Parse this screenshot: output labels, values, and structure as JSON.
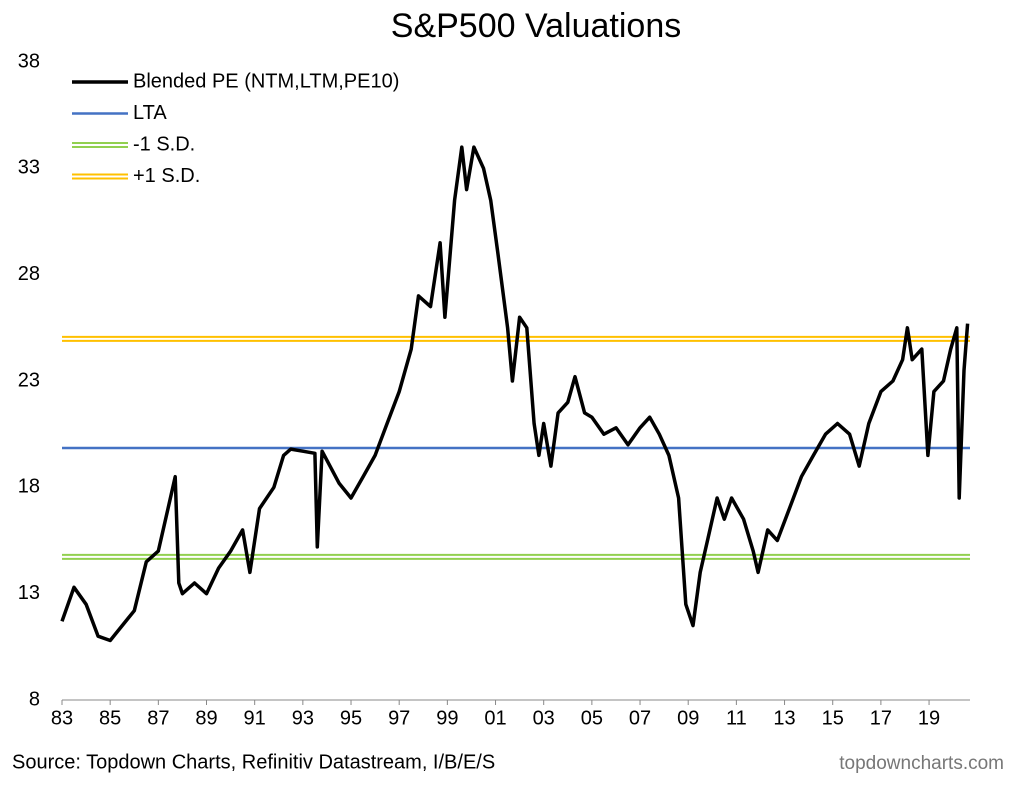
{
  "chart_data": {
    "type": "line",
    "title": "S&P500 Valuations",
    "xlim": [
      1983,
      2020.7
    ],
    "xticks": [
      {
        "value": 1983,
        "label": "83"
      },
      {
        "value": 1985,
        "label": "85"
      },
      {
        "value": 1987,
        "label": "87"
      },
      {
        "value": 1989,
        "label": "89"
      },
      {
        "value": 1991,
        "label": "91"
      },
      {
        "value": 1993,
        "label": "93"
      },
      {
        "value": 1995,
        "label": "95"
      },
      {
        "value": 1997,
        "label": "97"
      },
      {
        "value": 1999,
        "label": "99"
      },
      {
        "value": 2001,
        "label": "01"
      },
      {
        "value": 2003,
        "label": "03"
      },
      {
        "value": 2005,
        "label": "05"
      },
      {
        "value": 2007,
        "label": "07"
      },
      {
        "value": 2009,
        "label": "09"
      },
      {
        "value": 2011,
        "label": "11"
      },
      {
        "value": 2013,
        "label": "13"
      },
      {
        "value": 2015,
        "label": "15"
      },
      {
        "value": 2017,
        "label": "17"
      },
      {
        "value": 2019,
        "label": "19"
      }
    ],
    "ylim": [
      8,
      38
    ],
    "yticks": [
      8,
      13,
      18,
      23,
      28,
      33,
      38
    ],
    "grid": false,
    "x": [
      1983.0,
      1983.5,
      1984.0,
      1984.5,
      1985.0,
      1985.5,
      1986.0,
      1986.5,
      1987.0,
      1987.4,
      1987.7,
      1987.85,
      1988.0,
      1988.5,
      1989.0,
      1989.5,
      1990.0,
      1990.5,
      1990.8,
      1991.2,
      1991.8,
      1992.2,
      1992.5,
      1993.0,
      1993.5,
      1993.6,
      1993.8,
      1994.5,
      1995.0,
      1995.5,
      1996.0,
      1996.5,
      1997.0,
      1997.5,
      1997.8,
      1998.3,
      1998.7,
      1998.9,
      1999.3,
      1999.6,
      1999.8,
      2000.1,
      2000.5,
      2000.8,
      2001.1,
      2001.5,
      2001.7,
      2002.0,
      2002.3,
      2002.6,
      2002.8,
      2003.0,
      2003.3,
      2003.6,
      2004.0,
      2004.3,
      2004.7,
      2005.0,
      2005.5,
      2006.0,
      2006.5,
      2007.0,
      2007.4,
      2007.8,
      2008.2,
      2008.6,
      2008.9,
      2009.2,
      2009.5,
      2009.8,
      2010.2,
      2010.5,
      2010.8,
      2011.3,
      2011.7,
      2011.9,
      2012.3,
      2012.7,
      2013.2,
      2013.7,
      2014.2,
      2014.7,
      2015.2,
      2015.7,
      2016.1,
      2016.5,
      2017.0,
      2017.5,
      2017.9,
      2018.1,
      2018.3,
      2018.7,
      2018.95,
      2019.2,
      2019.6,
      2019.9,
      2020.15,
      2020.25,
      2020.45,
      2020.6
    ],
    "series": [
      {
        "name": "Blended PE (NTM,LTM,PE10)",
        "color": "#000000",
        "values": [
          11.7,
          13.3,
          12.5,
          11.0,
          10.8,
          11.5,
          12.2,
          14.5,
          15.0,
          17.0,
          18.5,
          13.5,
          13.0,
          13.5,
          13.0,
          14.2,
          15.0,
          16.0,
          14.0,
          17.0,
          18.0,
          19.5,
          19.8,
          19.7,
          19.6,
          15.2,
          19.7,
          18.2,
          17.5,
          18.5,
          19.5,
          21.0,
          22.5,
          24.5,
          27.0,
          26.5,
          29.5,
          26.0,
          31.5,
          34.0,
          32.0,
          34.0,
          33.0,
          31.5,
          29.0,
          25.5,
          23.0,
          26.0,
          25.5,
          21.0,
          19.5,
          21.0,
          19.0,
          21.5,
          22.0,
          23.2,
          21.5,
          21.3,
          20.5,
          20.8,
          20.0,
          20.8,
          21.3,
          20.5,
          19.5,
          17.5,
          12.5,
          11.5,
          14.0,
          15.5,
          17.5,
          16.5,
          17.5,
          16.5,
          15.0,
          14.0,
          16.0,
          15.5,
          17.0,
          18.5,
          19.5,
          20.5,
          21.0,
          20.5,
          19.0,
          21.0,
          22.5,
          23.0,
          24.0,
          25.5,
          24.0,
          24.5,
          19.5,
          22.5,
          23.0,
          24.5,
          25.5,
          17.5,
          23.5,
          25.7
        ]
      }
    ],
    "reference_lines": [
      {
        "name": "LTA",
        "color": "#4472c4",
        "value": 19.85
      },
      {
        "name": "-1 S.D.",
        "color": "#92d050",
        "value": 14.73
      },
      {
        "name": "+1 S.D.",
        "color": "#ffc000",
        "value": 24.98
      }
    ],
    "source": "Source: Topdown Charts, Refinitiv Datastream, I/B/E/S",
    "watermark": "topdowncharts.com"
  }
}
